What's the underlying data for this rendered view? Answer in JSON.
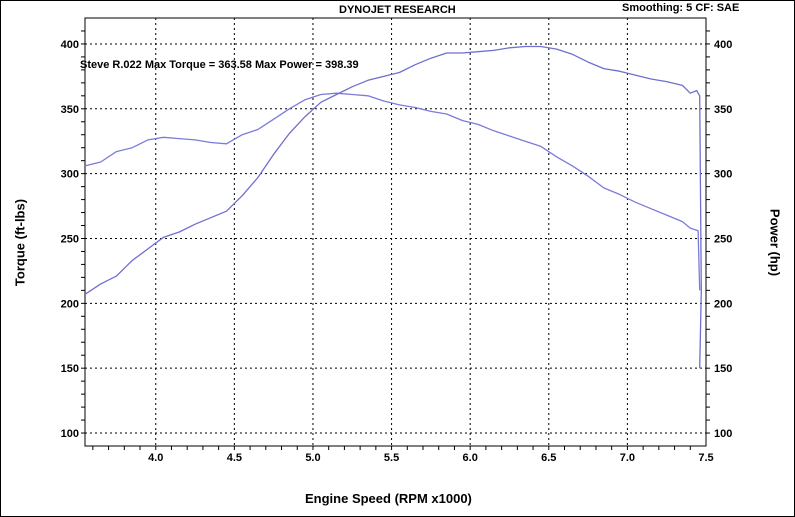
{
  "header": {
    "title": "DYNOJET RESEARCH",
    "settings": "Smoothing: 5  CF: SAE"
  },
  "colors": {
    "torque_line": "#7b7bdb",
    "power_line": "#6f6fd0",
    "grid": "#000000",
    "background": "#ffffff"
  },
  "chart_data": {
    "type": "line",
    "title": "",
    "annotation": "Steve R.022 Max Torque = 363.58 Max Power = 398.39",
    "xlabel": "Engine Speed (RPM x1000)",
    "ylabel": "Torque (ft-lbs)",
    "ylabel_right": "Power (hp)",
    "xlim": [
      3.55,
      7.5
    ],
    "ylim": [
      90,
      420
    ],
    "ylim_right": [
      90,
      420
    ],
    "x_ticks": [
      "4.0",
      "4.5",
      "5.0",
      "5.5",
      "6.0",
      "6.5",
      "7.0",
      "7.5"
    ],
    "y_ticks": [
      "100",
      "150",
      "200",
      "250",
      "300",
      "350",
      "400"
    ],
    "y_ticks_right": [
      "100",
      "150",
      "200",
      "250",
      "300",
      "350",
      "400"
    ],
    "grid": true,
    "series": [
      {
        "name": "Torque",
        "axis": "left",
        "x": [
          3.55,
          3.65,
          3.75,
          3.85,
          3.95,
          4.05,
          4.15,
          4.25,
          4.35,
          4.45,
          4.55,
          4.65,
          4.75,
          4.85,
          4.95,
          5.05,
          5.15,
          5.25,
          5.35,
          5.45,
          5.55,
          5.65,
          5.75,
          5.85,
          5.95,
          6.05,
          6.15,
          6.25,
          6.35,
          6.45,
          6.55,
          6.65,
          6.75,
          6.85,
          6.95,
          7.05,
          7.15,
          7.25,
          7.35,
          7.4,
          7.45,
          7.46
        ],
        "values": [
          306,
          309,
          317,
          320,
          326,
          328,
          327,
          326,
          324,
          323,
          330,
          334,
          342,
          350,
          357,
          361,
          362,
          361,
          360,
          356,
          353,
          351,
          348,
          346,
          341,
          338,
          333,
          329,
          325,
          321,
          313,
          306,
          298,
          289,
          284,
          278,
          273,
          268,
          263,
          258,
          256,
          210
        ]
      },
      {
        "name": "Power",
        "axis": "right",
        "x": [
          3.55,
          3.65,
          3.75,
          3.85,
          3.95,
          4.05,
          4.15,
          4.25,
          4.35,
          4.45,
          4.55,
          4.65,
          4.75,
          4.85,
          4.95,
          5.05,
          5.15,
          5.25,
          5.35,
          5.45,
          5.55,
          5.65,
          5.75,
          5.85,
          5.95,
          6.05,
          6.15,
          6.25,
          6.35,
          6.45,
          6.55,
          6.65,
          6.75,
          6.85,
          6.95,
          7.05,
          7.15,
          7.25,
          7.35,
          7.4,
          7.44,
          7.46,
          7.47,
          7.46
        ],
        "values": [
          207,
          215,
          221,
          233,
          242,
          251,
          255,
          261,
          266,
          271,
          283,
          297,
          315,
          331,
          344,
          355,
          361,
          367,
          372,
          375,
          378,
          384,
          389,
          393,
          393,
          394,
          395,
          397,
          398,
          398,
          396,
          392,
          386,
          381,
          379,
          376,
          373,
          371,
          368,
          362,
          364,
          360,
          210,
          150
        ]
      }
    ]
  }
}
